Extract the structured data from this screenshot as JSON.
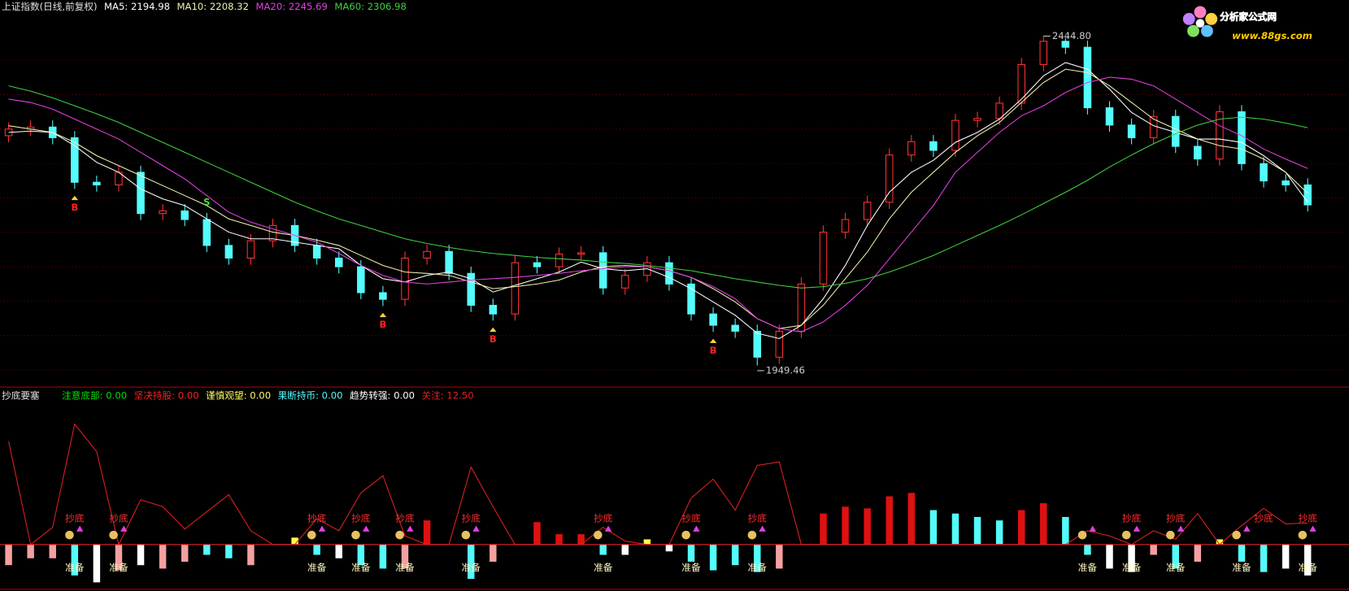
{
  "header": {
    "title": "上证指数(日线,前复权)"
  },
  "chart_data": {
    "type": "candlestick",
    "ylim": [
      1917,
      2499
    ],
    "up_color": "#ff3232",
    "down_color": "#54fcfc",
    "open": [
      2295,
      2305,
      2308,
      2292,
      2225,
      2221,
      2240,
      2178,
      2182,
      2169,
      2130,
      2111,
      2137,
      2160,
      2130,
      2111,
      2098,
      2059,
      2049,
      2111,
      2121,
      2088,
      2040,
      2027,
      2104,
      2098,
      2117,
      2119,
      2066,
      2085,
      2104,
      2072,
      2027,
      2010,
      2001,
      1962,
      2001,
      2072,
      2150,
      2169,
      2195,
      2266,
      2286,
      2273,
      2318,
      2321,
      2344,
      2402,
      2437,
      2428,
      2337,
      2311,
      2292,
      2324,
      2279,
      2260,
      2331,
      2253,
      2227,
      2221
    ],
    "high": [
      2315,
      2318,
      2318,
      2302,
      2235,
      2250,
      2250,
      2192,
      2192,
      2179,
      2140,
      2147,
      2170,
      2170,
      2140,
      2121,
      2108,
      2069,
      2121,
      2131,
      2131,
      2098,
      2050,
      2114,
      2114,
      2127,
      2129,
      2129,
      2095,
      2114,
      2114,
      2082,
      2037,
      2020,
      2011,
      2011,
      2082,
      2160,
      2179,
      2205,
      2276,
      2296,
      2296,
      2328,
      2331,
      2354,
      2412,
      2444.8,
      2442,
      2438,
      2347,
      2321,
      2334,
      2334,
      2289,
      2341,
      2341,
      2263,
      2237,
      2231
    ],
    "low": [
      2285,
      2295,
      2282,
      2215,
      2211,
      2211,
      2168,
      2168,
      2159,
      2120,
      2101,
      2101,
      2127,
      2120,
      2101,
      2088,
      2049,
      2039,
      2039,
      2101,
      2078,
      2030,
      2017,
      2017,
      2088,
      2088,
      2107,
      2056,
      2056,
      2075,
      2062,
      2017,
      2000,
      1991,
      1949.46,
      1952,
      1991,
      2062,
      2140,
      2159,
      2185,
      2256,
      2263,
      2263,
      2308,
      2311,
      2334,
      2392,
      2418,
      2327,
      2301,
      2282,
      2282,
      2269,
      2250,
      2250,
      2243,
      2217,
      2211,
      2181
    ],
    "close": [
      2305,
      2308,
      2292,
      2225,
      2221,
      2240,
      2178,
      2182,
      2169,
      2130,
      2111,
      2137,
      2160,
      2130,
      2111,
      2098,
      2059,
      2049,
      2111,
      2121,
      2088,
      2040,
      2027,
      2104,
      2098,
      2117,
      2119,
      2066,
      2085,
      2104,
      2072,
      2027,
      2010,
      2001,
      1962,
      2001,
      2072,
      2150,
      2169,
      2195,
      2266,
      2286,
      2273,
      2318,
      2321,
      2344,
      2402,
      2437,
      2428,
      2337,
      2311,
      2292,
      2324,
      2279,
      2260,
      2331,
      2253,
      2227,
      2221,
      2191
    ],
    "ma": [
      {
        "label": "MA5: 2194.98",
        "color": "#ffffff",
        "values": [
          2300,
          2302,
          2300,
          2280,
          2255,
          2240,
          2215,
          2200,
          2190,
          2170,
          2150,
          2140,
          2140,
          2135,
          2130,
          2125,
          2100,
          2080,
          2075,
          2085,
          2090,
          2080,
          2060,
          2070,
          2080,
          2090,
          2105,
          2095,
          2092,
          2095,
          2082,
          2065,
          2045,
          2025,
          1998,
          1990,
          2010,
          2050,
          2100,
          2160,
          2210,
          2240,
          2258,
          2285,
          2300,
          2320,
          2350,
          2385,
          2405,
          2395,
          2365,
          2330,
          2310,
          2300,
          2290,
          2290,
          2285,
          2265,
          2240,
          2194.98
        ]
      },
      {
        "label": "MA10: 2208.32",
        "color": "#f0f0b0",
        "values": [
          2310,
          2305,
          2300,
          2285,
          2265,
          2250,
          2235,
          2220,
          2205,
          2190,
          2170,
          2160,
          2150,
          2145,
          2138,
          2130,
          2115,
          2100,
          2090,
          2088,
          2085,
          2075,
          2065,
          2068,
          2072,
          2078,
          2090,
          2098,
          2100,
          2098,
          2092,
          2082,
          2065,
          2045,
          2020,
          2005,
          2010,
          2040,
          2080,
          2120,
          2170,
          2210,
          2240,
          2270,
          2295,
          2315,
          2345,
          2375,
          2395,
          2390,
          2370,
          2345,
          2320,
          2305,
          2290,
          2280,
          2275,
          2260,
          2240,
          2208.32
        ]
      },
      {
        "label": "MA20: 2245.69",
        "color": "#e040e0",
        "values": [
          2350,
          2345,
          2335,
          2320,
          2305,
          2290,
          2270,
          2250,
          2230,
          2205,
          2180,
          2165,
          2155,
          2145,
          2135,
          2118,
          2100,
          2085,
          2075,
          2072,
          2075,
          2078,
          2080,
          2082,
          2085,
          2088,
          2092,
          2095,
          2098,
          2098,
          2092,
          2082,
          2068,
          2050,
          2020,
          2005,
          2000,
          2015,
          2040,
          2070,
          2110,
          2150,
          2190,
          2240,
          2270,
          2300,
          2325,
          2340,
          2360,
          2375,
          2383,
          2380,
          2370,
          2350,
          2330,
          2310,
          2295,
          2275,
          2260,
          2245.69
        ]
      },
      {
        "label": "MA60: 2306.98",
        "color": "#40d040",
        "values": [
          2370,
          2362,
          2352,
          2340,
          2328,
          2315,
          2300,
          2285,
          2270,
          2255,
          2240,
          2225,
          2210,
          2195,
          2182,
          2170,
          2160,
          2150,
          2140,
          2133,
          2127,
          2122,
          2118,
          2115,
          2112,
          2110,
          2108,
          2105,
          2103,
          2100,
          2096,
          2092,
          2086,
          2080,
          2075,
          2070,
          2066,
          2068,
          2073,
          2080,
          2090,
          2102,
          2115,
          2130,
          2145,
          2160,
          2176,
          2193,
          2210,
          2228,
          2248,
          2266,
          2283,
          2298,
          2311,
          2320,
          2323,
          2320,
          2314,
          2306.98
        ]
      }
    ],
    "signals": [
      null,
      null,
      null,
      "B",
      null,
      null,
      null,
      null,
      null,
      "S",
      null,
      null,
      null,
      null,
      null,
      null,
      null,
      "B",
      null,
      null,
      null,
      null,
      "B",
      null,
      null,
      null,
      null,
      null,
      null,
      null,
      null,
      null,
      "B",
      null,
      null,
      null,
      null,
      null,
      null,
      null,
      null,
      null,
      null,
      null,
      null,
      null,
      null,
      null,
      null,
      null,
      null,
      null,
      null,
      null,
      null,
      null,
      null,
      null,
      null,
      null
    ],
    "max_label": "2444.80",
    "min_label": "1949.46"
  },
  "indicator": {
    "type": "bar",
    "title": "抄底要塞",
    "ylim": [
      -25,
      90
    ],
    "series": [
      {
        "label": "注意底部: 0.00",
        "legend_color": "#00e000",
        "color": "#f4a0a0",
        "values": [
          -12,
          -8,
          -8,
          null,
          null,
          -15,
          null,
          -14,
          -10,
          null,
          null,
          -12,
          null,
          null,
          null,
          null,
          null,
          null,
          -14,
          null,
          null,
          null,
          -10,
          null,
          null,
          null,
          null,
          null,
          null,
          null,
          null,
          null,
          null,
          null,
          null,
          -14,
          null,
          null,
          null,
          null,
          null,
          null,
          null,
          null,
          null,
          null,
          null,
          null,
          null,
          null,
          null,
          null,
          -6,
          null,
          -10,
          null,
          null,
          null,
          null,
          null
        ]
      },
      {
        "label": "坚决持股: 0.00",
        "legend_color": "#ff2020",
        "color": "#e01010",
        "values": [
          null,
          null,
          null,
          null,
          null,
          null,
          null,
          null,
          null,
          null,
          null,
          null,
          null,
          null,
          null,
          null,
          null,
          null,
          null,
          14,
          null,
          null,
          null,
          null,
          13,
          6,
          6,
          null,
          null,
          null,
          null,
          null,
          null,
          null,
          null,
          null,
          null,
          18,
          22,
          21,
          28,
          30,
          null,
          null,
          null,
          null,
          20,
          24,
          null,
          null,
          null,
          null,
          null,
          null,
          null,
          null,
          null,
          null,
          null,
          null
        ]
      },
      {
        "label": "谨慎观望: 0.00",
        "legend_color": "#ffff60",
        "color": "#ffff40",
        "values": [
          null,
          null,
          null,
          null,
          null,
          null,
          null,
          null,
          null,
          null,
          null,
          null,
          null,
          4,
          null,
          null,
          null,
          null,
          null,
          null,
          null,
          null,
          null,
          null,
          null,
          null,
          null,
          null,
          null,
          3,
          null,
          null,
          null,
          null,
          null,
          null,
          null,
          null,
          null,
          null,
          null,
          null,
          null,
          null,
          null,
          null,
          null,
          null,
          null,
          null,
          null,
          null,
          null,
          null,
          null,
          3,
          null,
          null,
          null,
          null
        ]
      },
      {
        "label": "果断持币: 0.00",
        "legend_color": "#54fcfc",
        "color": "#54fcfc",
        "values": [
          null,
          null,
          null,
          -18,
          null,
          null,
          null,
          null,
          null,
          -6,
          -8,
          null,
          null,
          null,
          -6,
          null,
          -12,
          -14,
          null,
          null,
          null,
          -20,
          null,
          null,
          null,
          null,
          null,
          -6,
          null,
          null,
          null,
          -10,
          -15,
          -12,
          -16,
          null,
          null,
          null,
          null,
          null,
          null,
          null,
          20,
          18,
          16,
          14,
          null,
          null,
          16,
          -6,
          null,
          null,
          null,
          -14,
          null,
          null,
          -10,
          -16,
          null,
          null
        ]
      },
      {
        "label": "趋势转强: 0.00",
        "legend_color": "#ffffff",
        "color": "#ffffff",
        "values": [
          null,
          null,
          null,
          null,
          -22,
          null,
          -12,
          null,
          null,
          null,
          null,
          null,
          null,
          null,
          null,
          -8,
          null,
          null,
          null,
          null,
          null,
          null,
          null,
          null,
          null,
          null,
          null,
          null,
          -6,
          null,
          -4,
          null,
          null,
          null,
          null,
          null,
          null,
          null,
          null,
          null,
          null,
          null,
          null,
          null,
          null,
          null,
          null,
          null,
          null,
          null,
          -14,
          -16,
          null,
          null,
          null,
          null,
          null,
          null,
          -14,
          -18
        ]
      }
    ],
    "line": {
      "label": "关注: 12.50",
      "color": "#e02020",
      "values": [
        60,
        0,
        10,
        70,
        54,
        0,
        26,
        22,
        9,
        19,
        29,
        8,
        0,
        0,
        15,
        8,
        30,
        40,
        5,
        0,
        0,
        45,
        22,
        0,
        0,
        0,
        0,
        10,
        2,
        0,
        0,
        27,
        38,
        20,
        46,
        48,
        0,
        0,
        0,
        0,
        0,
        0,
        0,
        0,
        0,
        0,
        0,
        0,
        0,
        8,
        5,
        0,
        8,
        3,
        18,
        0,
        11,
        21,
        12,
        12.5
      ]
    },
    "bottom_signals": [
      null,
      null,
      null,
      "抄底",
      null,
      "抄底",
      null,
      null,
      null,
      null,
      null,
      null,
      null,
      null,
      "抄底",
      null,
      "抄底",
      null,
      "抄底",
      null,
      null,
      "抄底",
      null,
      null,
      null,
      null,
      null,
      "抄底",
      null,
      null,
      null,
      "抄底",
      null,
      null,
      "抄底",
      null,
      null,
      null,
      null,
      null,
      null,
      null,
      null,
      null,
      null,
      null,
      null,
      null,
      null,
      null,
      null,
      "抄底",
      null,
      "抄底",
      null,
      null,
      null,
      "抄底",
      null,
      "抄底"
    ],
    "ready_signals": [
      null,
      null,
      null,
      "准备",
      null,
      "准备",
      null,
      null,
      null,
      null,
      null,
      null,
      null,
      null,
      "准备",
      null,
      "准备",
      null,
      "准备",
      null,
      null,
      "准备",
      null,
      null,
      null,
      null,
      null,
      "准备",
      null,
      null,
      null,
      "准备",
      null,
      null,
      "准备",
      null,
      null,
      null,
      null,
      null,
      null,
      null,
      null,
      null,
      null,
      null,
      null,
      null,
      null,
      "准备",
      null,
      "准备",
      null,
      "准备",
      null,
      null,
      "准备",
      null,
      null,
      "准备"
    ]
  },
  "logo": {
    "name": "分析家公式网",
    "url": "www.88gs.com"
  }
}
